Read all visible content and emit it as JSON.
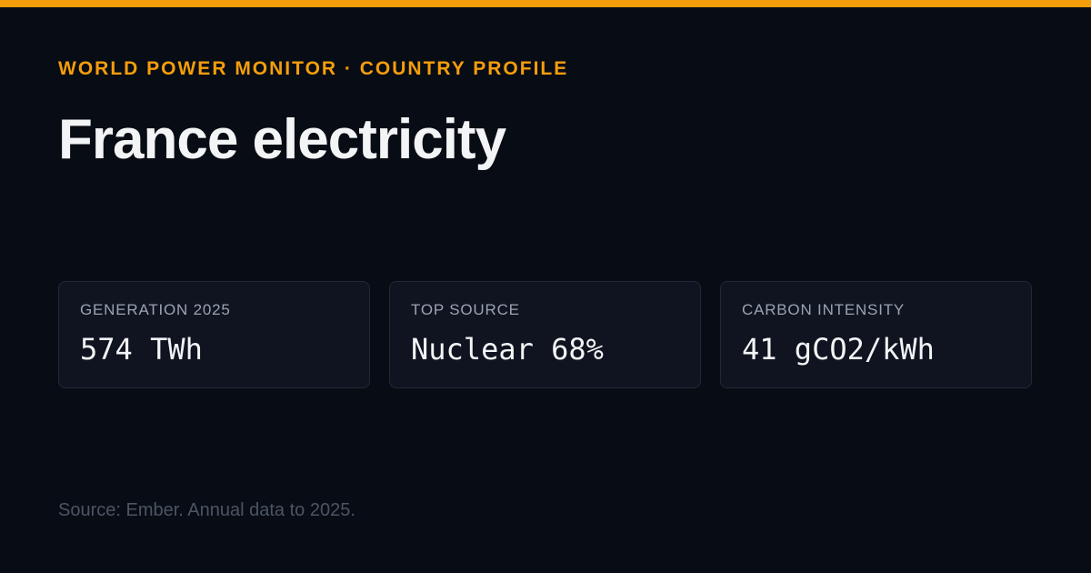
{
  "header": {
    "kicker": "WORLD POWER MONITOR · COUNTRY PROFILE",
    "title": "France electricity"
  },
  "cards": [
    {
      "label": "GENERATION 2025",
      "value": "574 TWh"
    },
    {
      "label": "TOP SOURCE",
      "value": "Nuclear 68%"
    },
    {
      "label": "CARBON INTENSITY",
      "value": "41 gCO2/kWh"
    }
  ],
  "footer": {
    "source": "Source: Ember. Annual data to 2025."
  }
}
